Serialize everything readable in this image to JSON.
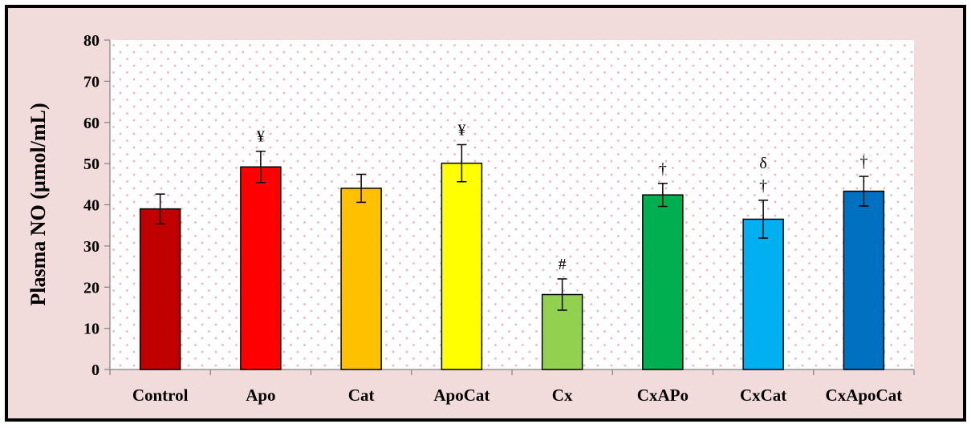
{
  "chart_data": {
    "type": "bar",
    "ylabel": "Plasma NO (µmol/mL)",
    "xlabel": "",
    "ylim": [
      0,
      80
    ],
    "yticks": [
      0,
      10,
      20,
      30,
      40,
      50,
      60,
      70,
      80
    ],
    "categories": [
      "Control",
      "Apo",
      "Cat",
      "ApoCat",
      "Cx",
      "CxAPo",
      "CxCat",
      "CxApoCat"
    ],
    "values": [
      39,
      49.2,
      44,
      50.1,
      18.2,
      42.4,
      36.5,
      43.3
    ],
    "errors": [
      3.6,
      3.8,
      3.4,
      4.5,
      3.8,
      2.8,
      4.6,
      3.6
    ],
    "colors": [
      "#c00000",
      "#ff0000",
      "#ffc000",
      "#ffff00",
      "#92d050",
      "#00b050",
      "#00b0f0",
      "#0070c0"
    ],
    "annotations": [
      {
        "category": "Apo",
        "text": "¥"
      },
      {
        "category": "ApoCat",
        "text": "¥"
      },
      {
        "category": "Cx",
        "text": "#"
      },
      {
        "category": "CxAPo",
        "text": "†"
      },
      {
        "category": "CxCat",
        "text": "δ\n†"
      },
      {
        "category": "CxApoCat",
        "text": "†"
      }
    ],
    "grid": false,
    "background_colors": {
      "plot": "#ffffff",
      "frame": "#f2dcdb",
      "pattern_dots": "#e6b9b8"
    }
  }
}
